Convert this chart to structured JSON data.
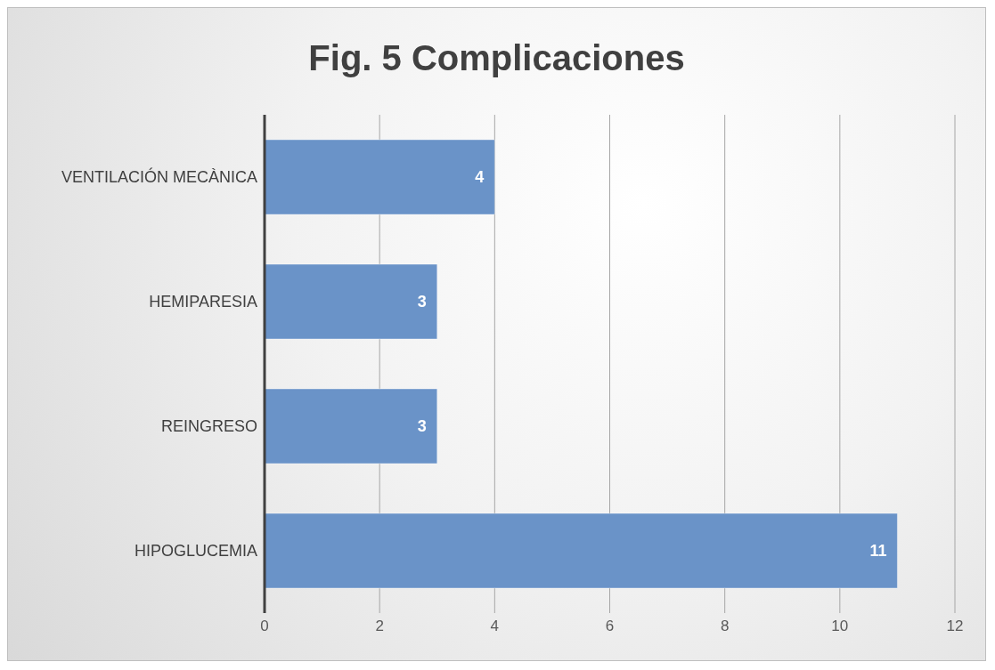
{
  "chart_data": {
    "type": "bar",
    "orientation": "horizontal",
    "title": "Fig. 5 Complicaciones",
    "categories": [
      "VENTILACIÓN MECÀNICA",
      "HEMIPARESIA",
      "REINGRESO",
      "HIPOGLUCEMIA"
    ],
    "values": [
      4,
      3,
      3,
      11
    ],
    "color": "#6a93c8",
    "xlim": [
      0,
      12
    ],
    "xticks": [
      0,
      2,
      4,
      6,
      8,
      10,
      12
    ],
    "grid": "x",
    "data_labels": true
  }
}
